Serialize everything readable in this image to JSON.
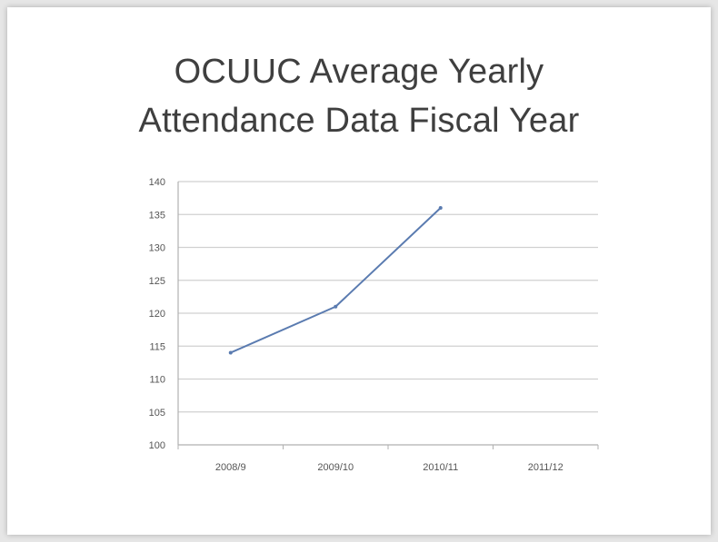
{
  "chart_data": {
    "type": "line",
    "title": "OCUUC Average Yearly Attendance Data Fiscal Year",
    "title_lines": [
      "OCUUC Average Yearly",
      "Attendance Data Fiscal Year"
    ],
    "categories": [
      "2008/9",
      "2009/10",
      "2010/11",
      "2011/12"
    ],
    "series": [
      {
        "values": [
          114,
          121,
          136,
          null
        ]
      }
    ],
    "ylim": [
      100,
      140
    ],
    "yticks": [
      100,
      105,
      110,
      115,
      120,
      125,
      130,
      135,
      140
    ],
    "xlabel": "",
    "ylabel": "",
    "grid": true,
    "legend": "none",
    "colors": {
      "line": "#5a7bb0",
      "grid": "#d0d0d0",
      "axis": "#b0b0b0"
    }
  }
}
